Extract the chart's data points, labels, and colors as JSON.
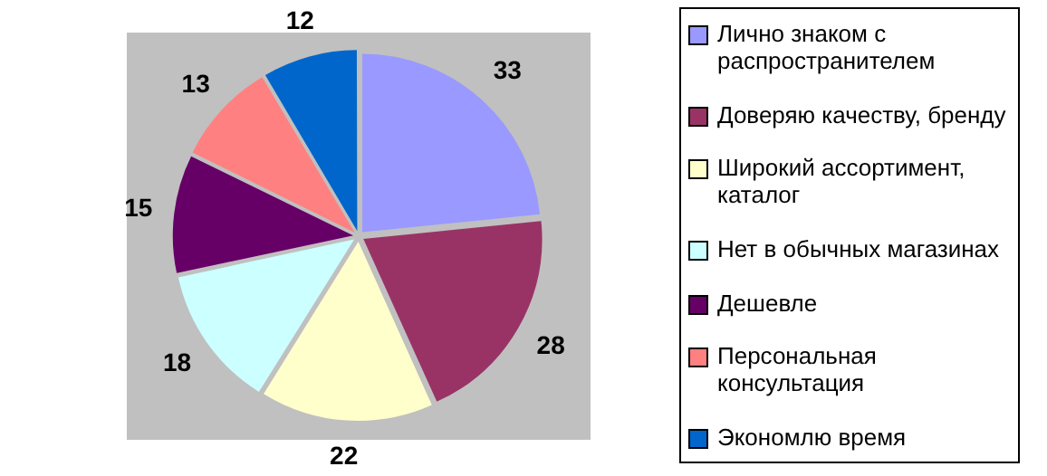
{
  "chart_data": {
    "type": "pie",
    "categories": [
      "Лично знаком с распространителем",
      "Доверяю качеству, бренду",
      "Широкий ассортимент, каталог",
      "Нет в обычных магазинах",
      "Дешевле",
      "Персональная консультация",
      "Экономлю время"
    ],
    "values": [
      33,
      28,
      22,
      18,
      15,
      13,
      12
    ],
    "colors": [
      "#9999ff",
      "#993366",
      "#ffffcc",
      "#ccffff",
      "#660066",
      "#ff8080",
      "#0066cc"
    ],
    "data_labels": true,
    "legend": "right"
  }
}
